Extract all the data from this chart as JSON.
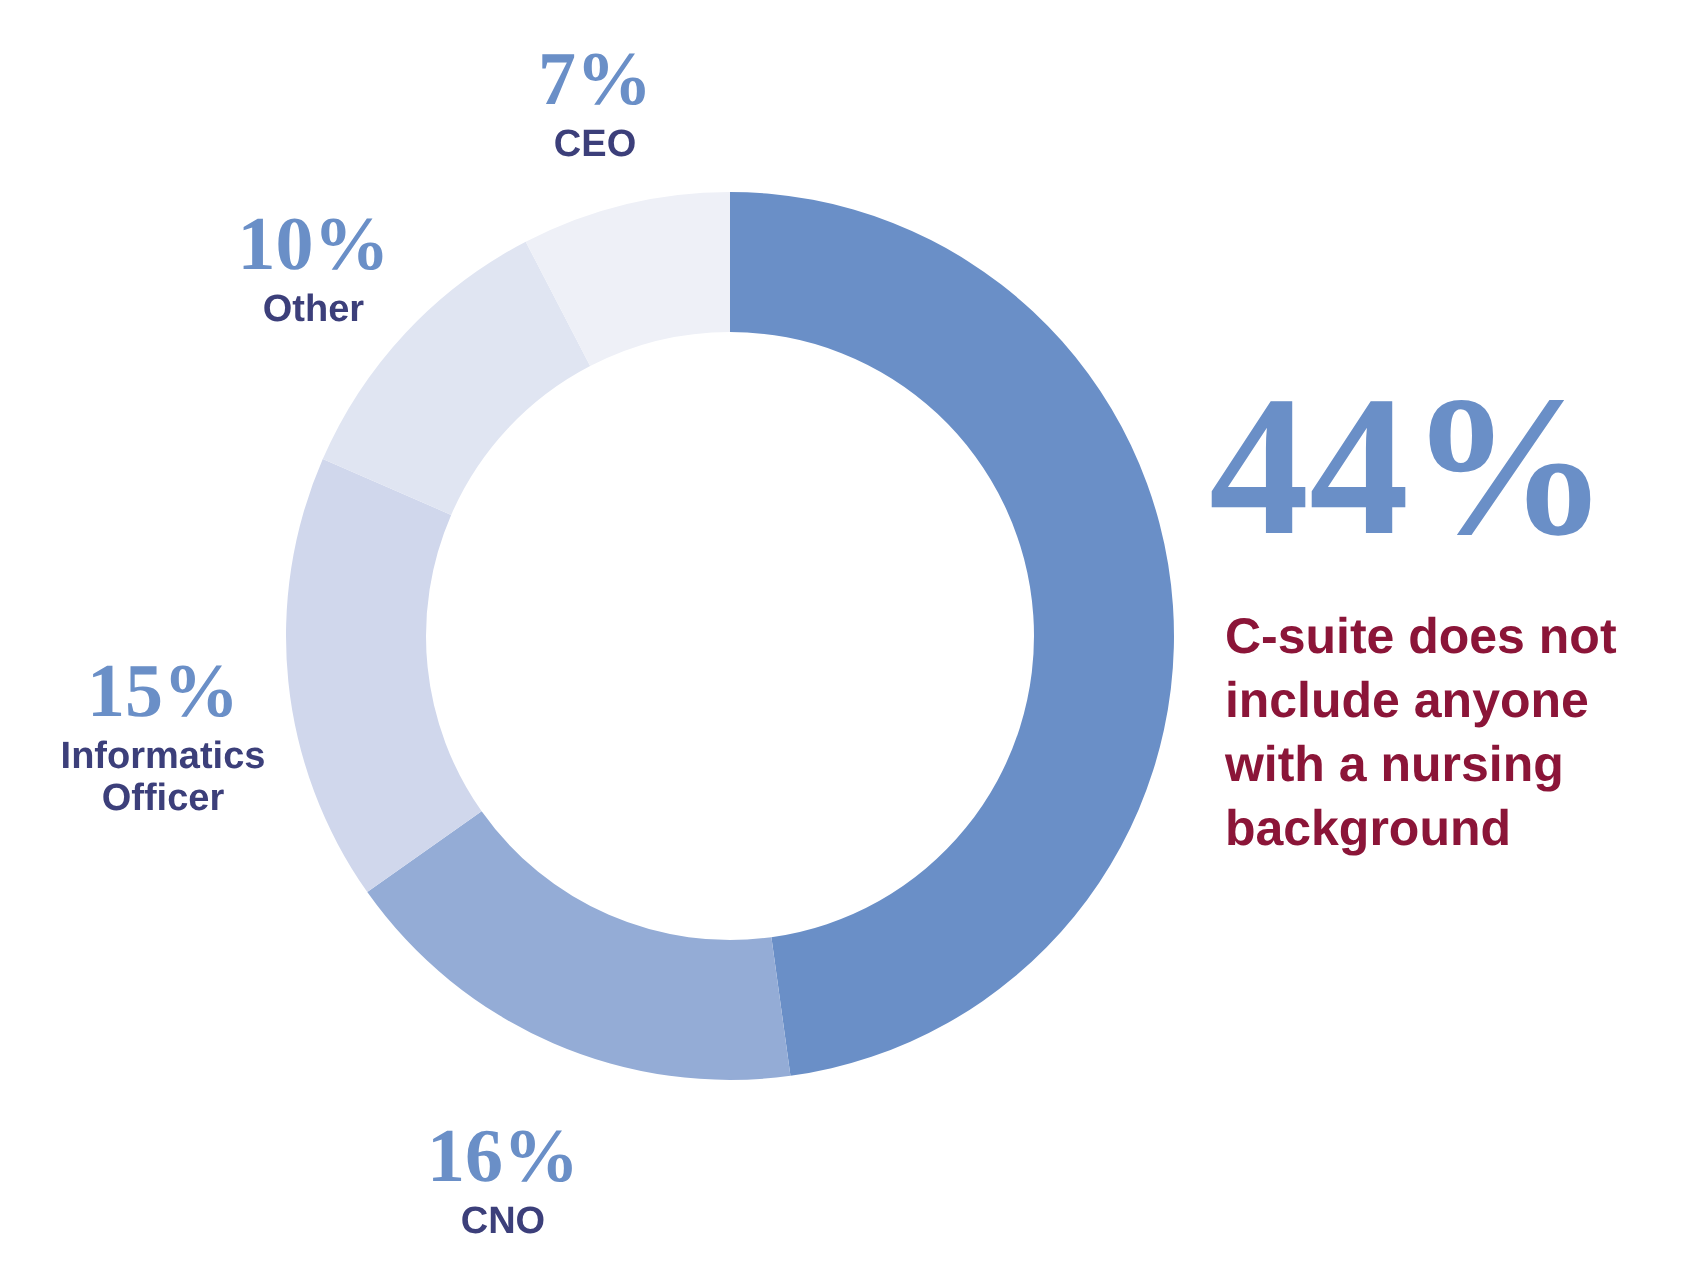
{
  "chart_data": {
    "type": "donut",
    "categories": [
      "C-suite does not include anyone with a nursing background",
      "CNO",
      "Informatics Officer",
      "Other",
      "CEO"
    ],
    "values": [
      44,
      16,
      15,
      10,
      7
    ],
    "value_labels": [
      "44%",
      "16%",
      "15%",
      "10%",
      "7%"
    ],
    "colors": [
      "#6a8fc7",
      "#94acd6",
      "#d0d7ec",
      "#e0e5f2",
      "#eef0f7"
    ]
  }
}
